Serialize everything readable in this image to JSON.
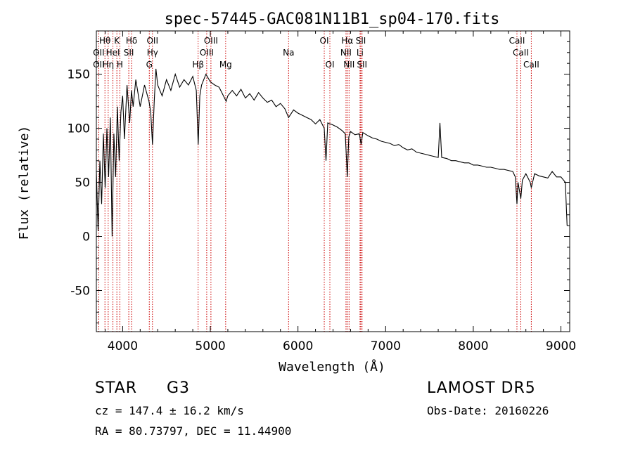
{
  "chart_data": {
    "type": "line",
    "title": "spec-57445-GAC081N11B1_sp04-170.fits",
    "xlabel": "Wavelength (Å)",
    "ylabel": "Flux (relative)",
    "xlim": [
      3700,
      9100
    ],
    "ylim": [
      -88,
      190
    ],
    "xticks": [
      4000,
      5000,
      6000,
      7000,
      8000,
      9000
    ],
    "yticks": [
      -50,
      0,
      50,
      100,
      150
    ],
    "grid": false,
    "series": [
      {
        "color": "#000000",
        "points": [
          [
            3700,
            60
          ],
          [
            3720,
            5
          ],
          [
            3740,
            70
          ],
          [
            3760,
            30
          ],
          [
            3780,
            95
          ],
          [
            3800,
            45
          ],
          [
            3820,
            100
          ],
          [
            3840,
            55
          ],
          [
            3860,
            110
          ],
          [
            3880,
            0
          ],
          [
            3900,
            95
          ],
          [
            3920,
            55
          ],
          [
            3940,
            120
          ],
          [
            3960,
            70
          ],
          [
            3980,
            115
          ],
          [
            4000,
            130
          ],
          [
            4020,
            90
          ],
          [
            4050,
            140
          ],
          [
            4080,
            105
          ],
          [
            4100,
            135
          ],
          [
            4120,
            120
          ],
          [
            4150,
            145
          ],
          [
            4200,
            120
          ],
          [
            4250,
            140
          ],
          [
            4300,
            125
          ],
          [
            4320,
            115
          ],
          [
            4340,
            85
          ],
          [
            4360,
            125
          ],
          [
            4380,
            155
          ],
          [
            4400,
            140
          ],
          [
            4450,
            130
          ],
          [
            4500,
            145
          ],
          [
            4550,
            135
          ],
          [
            4600,
            150
          ],
          [
            4650,
            138
          ],
          [
            4700,
            145
          ],
          [
            4750,
            140
          ],
          [
            4800,
            148
          ],
          [
            4840,
            135
          ],
          [
            4862,
            85
          ],
          [
            4880,
            130
          ],
          [
            4900,
            140
          ],
          [
            4950,
            150
          ],
          [
            5000,
            143
          ],
          [
            5050,
            140
          ],
          [
            5100,
            138
          ],
          [
            5150,
            130
          ],
          [
            5180,
            125
          ],
          [
            5200,
            130
          ],
          [
            5250,
            135
          ],
          [
            5300,
            130
          ],
          [
            5350,
            136
          ],
          [
            5400,
            128
          ],
          [
            5450,
            132
          ],
          [
            5500,
            126
          ],
          [
            5550,
            133
          ],
          [
            5600,
            128
          ],
          [
            5650,
            124
          ],
          [
            5700,
            126
          ],
          [
            5750,
            120
          ],
          [
            5800,
            123
          ],
          [
            5850,
            118
          ],
          [
            5893,
            110
          ],
          [
            5950,
            117
          ],
          [
            6000,
            114
          ],
          [
            6050,
            112
          ],
          [
            6100,
            110
          ],
          [
            6150,
            108
          ],
          [
            6200,
            104
          ],
          [
            6250,
            108
          ],
          [
            6300,
            100
          ],
          [
            6320,
            70
          ],
          [
            6340,
            105
          ],
          [
            6400,
            103
          ],
          [
            6450,
            101
          ],
          [
            6500,
            98
          ],
          [
            6540,
            95
          ],
          [
            6563,
            55
          ],
          [
            6580,
            92
          ],
          [
            6600,
            97
          ],
          [
            6650,
            94
          ],
          [
            6700,
            95
          ],
          [
            6720,
            85
          ],
          [
            6740,
            96
          ],
          [
            6800,
            93
          ],
          [
            6850,
            91
          ],
          [
            6900,
            90
          ],
          [
            6950,
            88
          ],
          [
            7000,
            87
          ],
          [
            7050,
            86
          ],
          [
            7100,
            84
          ],
          [
            7150,
            85
          ],
          [
            7200,
            82
          ],
          [
            7250,
            80
          ],
          [
            7300,
            81
          ],
          [
            7350,
            78
          ],
          [
            7400,
            77
          ],
          [
            7450,
            76
          ],
          [
            7500,
            75
          ],
          [
            7550,
            74
          ],
          [
            7600,
            73
          ],
          [
            7620,
            105
          ],
          [
            7640,
            73
          ],
          [
            7700,
            72
          ],
          [
            7750,
            70
          ],
          [
            7800,
            70
          ],
          [
            7850,
            69
          ],
          [
            7900,
            68
          ],
          [
            7950,
            68
          ],
          [
            8000,
            66
          ],
          [
            8050,
            66
          ],
          [
            8100,
            65
          ],
          [
            8150,
            64
          ],
          [
            8200,
            64
          ],
          [
            8250,
            63
          ],
          [
            8300,
            62
          ],
          [
            8350,
            62
          ],
          [
            8400,
            61
          ],
          [
            8450,
            60
          ],
          [
            8480,
            55
          ],
          [
            8498,
            30
          ],
          [
            8510,
            50
          ],
          [
            8542,
            35
          ],
          [
            8560,
            52
          ],
          [
            8600,
            58
          ],
          [
            8650,
            50
          ],
          [
            8662,
            45
          ],
          [
            8700,
            58
          ],
          [
            8750,
            56
          ],
          [
            8800,
            55
          ],
          [
            8850,
            54
          ],
          [
            8900,
            60
          ],
          [
            8950,
            55
          ],
          [
            9000,
            55
          ],
          [
            9050,
            50
          ],
          [
            9070,
            10
          ]
        ]
      }
    ],
    "lines": [
      {
        "label": "Hθ",
        "x": 3798,
        "row": 0
      },
      {
        "label": "K",
        "x": 3934,
        "row": 0
      },
      {
        "label": "Hδ",
        "x": 4102,
        "row": 0
      },
      {
        "label": "OII",
        "x": 4340,
        "row": 0
      },
      {
        "label": "OIII",
        "x": 5007,
        "row": 0
      },
      {
        "label": "OI",
        "x": 6300,
        "row": 0
      },
      {
        "label": "Hα",
        "x": 6563,
        "row": 0
      },
      {
        "label": "SII",
        "x": 6717,
        "row": 0
      },
      {
        "label": "CaII",
        "x": 8498,
        "row": 0
      },
      {
        "label": "OII",
        "x": 3727,
        "row": 1
      },
      {
        "label": "HeI",
        "x": 3889,
        "row": 1
      },
      {
        "label": "SII",
        "x": 4070,
        "row": 1
      },
      {
        "label": "Hγ",
        "x": 4340,
        "row": 1
      },
      {
        "label": "OIII",
        "x": 4959,
        "row": 1
      },
      {
        "label": "Na",
        "x": 5893,
        "row": 1
      },
      {
        "label": "NII",
        "x": 6548,
        "row": 1
      },
      {
        "label": "Li",
        "x": 6708,
        "row": 1
      },
      {
        "label": "CaII",
        "x": 8542,
        "row": 1
      },
      {
        "label": "OII",
        "x": 3727,
        "row": 2
      },
      {
        "label": "Hη",
        "x": 3835,
        "row": 2
      },
      {
        "label": "H",
        "x": 3968,
        "row": 2
      },
      {
        "label": "G",
        "x": 4304,
        "row": 2
      },
      {
        "label": "Hβ",
        "x": 4861,
        "row": 2
      },
      {
        "label": "Mg",
        "x": 5175,
        "row": 2
      },
      {
        "label": "OI",
        "x": 6364,
        "row": 2
      },
      {
        "label": "NII",
        "x": 6583,
        "row": 2
      },
      {
        "label": "SII",
        "x": 6731,
        "row": 2
      },
      {
        "label": "CaII",
        "x": 8662,
        "row": 2
      }
    ]
  },
  "info": {
    "class": "STAR",
    "subclass": "G3",
    "survey": "LAMOST  DR5",
    "cz": "cz = 147.4 ± 16.2 km/s",
    "obs_date": "Obs-Date: 20160226",
    "radec": "RA =  80.73797, DEC =  11.44900"
  },
  "colors": {
    "spectrum": "#000000",
    "line_marker": "#cc0000",
    "background": "#ffffff"
  }
}
